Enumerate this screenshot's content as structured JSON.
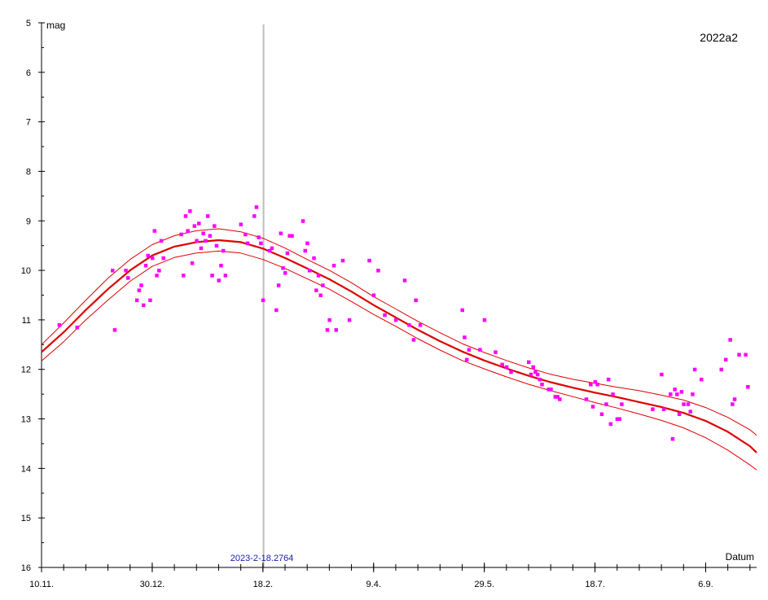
{
  "chart_data": {
    "type": "scatter",
    "title": "2022a2",
    "xlabel": "Datum",
    "ylabel": "mag",
    "ylim": [
      5,
      16
    ],
    "y_inverted": true,
    "y_ticks": [
      5,
      6,
      7,
      8,
      9,
      10,
      11,
      12,
      13,
      14,
      15,
      16
    ],
    "x_unit": "days since 10.11.2022",
    "xlim": [
      0,
      323
    ],
    "x_ticks": [
      {
        "day": 0,
        "label": "10.11."
      },
      {
        "day": 50,
        "label": "30.12."
      },
      {
        "day": 100,
        "label": "18.2."
      },
      {
        "day": 150,
        "label": "9.4."
      },
      {
        "day": 200,
        "label": "29.5."
      },
      {
        "day": 250,
        "label": "18.7."
      },
      {
        "day": 300,
        "label": "6.9."
      }
    ],
    "marker": {
      "day": 100.28,
      "label": "2023-2-18.2764"
    },
    "colors": {
      "points": "#ff00ff",
      "fit": "#dd0000",
      "marker": "#bdbdbd",
      "marker_label": "#1a1aaa",
      "axis": "#000000"
    },
    "series": [
      {
        "name": "observations",
        "points": [
          [
            8,
            11.1
          ],
          [
            16,
            11.15
          ],
          [
            33,
            11.2
          ],
          [
            32,
            10.0
          ],
          [
            38,
            10.0
          ],
          [
            39,
            10.15
          ],
          [
            43,
            10.6
          ],
          [
            44,
            10.4
          ],
          [
            45,
            10.3
          ],
          [
            46,
            10.7
          ],
          [
            47,
            9.9
          ],
          [
            48,
            9.7
          ],
          [
            49,
            10.6
          ],
          [
            50,
            9.75
          ],
          [
            51,
            9.2
          ],
          [
            52,
            10.1
          ],
          [
            53,
            10.0
          ],
          [
            54,
            9.4
          ],
          [
            55,
            9.75
          ],
          [
            63,
            9.27
          ],
          [
            64,
            10.1
          ],
          [
            65,
            8.9
          ],
          [
            66,
            9.2
          ],
          [
            67,
            8.8
          ],
          [
            68,
            9.85
          ],
          [
            69,
            9.1
          ],
          [
            70,
            9.4
          ],
          [
            71,
            9.05
          ],
          [
            72,
            9.55
          ],
          [
            73,
            9.25
          ],
          [
            74,
            9.4
          ],
          [
            75,
            8.9
          ],
          [
            76,
            9.3
          ],
          [
            77,
            10.1
          ],
          [
            78,
            9.1
          ],
          [
            79,
            9.5
          ],
          [
            80,
            10.2
          ],
          [
            81,
            9.9
          ],
          [
            82,
            9.6
          ],
          [
            83,
            10.1
          ],
          [
            90,
            9.07
          ],
          [
            92,
            9.27
          ],
          [
            93,
            9.45
          ],
          [
            96,
            8.9
          ],
          [
            97,
            8.72
          ],
          [
            98,
            9.33
          ],
          [
            99,
            9.45
          ],
          [
            100,
            10.6
          ],
          [
            103,
            9.6
          ],
          [
            104,
            9.55
          ],
          [
            106,
            10.8
          ],
          [
            107,
            10.3
          ],
          [
            108,
            9.25
          ],
          [
            109,
            9.95
          ],
          [
            110,
            10.05
          ],
          [
            111,
            9.65
          ],
          [
            112,
            9.3
          ],
          [
            113,
            9.3
          ],
          [
            118,
            9.0
          ],
          [
            119,
            9.6
          ],
          [
            120,
            9.45
          ],
          [
            121,
            10.0
          ],
          [
            123,
            9.75
          ],
          [
            124,
            10.4
          ],
          [
            125,
            10.1
          ],
          [
            126,
            10.5
          ],
          [
            127,
            10.3
          ],
          [
            129,
            11.2
          ],
          [
            130,
            11.0
          ],
          [
            132,
            9.9
          ],
          [
            133,
            11.2
          ],
          [
            136,
            9.8
          ],
          [
            139,
            11.0
          ],
          [
            148,
            9.8
          ],
          [
            150,
            10.5
          ],
          [
            152,
            10.0
          ],
          [
            155,
            10.9
          ],
          [
            160,
            11.0
          ],
          [
            164,
            10.2
          ],
          [
            166,
            11.1
          ],
          [
            168,
            11.4
          ],
          [
            169,
            10.6
          ],
          [
            171,
            11.1
          ],
          [
            190,
            10.8
          ],
          [
            191,
            11.35
          ],
          [
            192,
            11.8
          ],
          [
            193,
            11.6
          ],
          [
            198,
            11.6
          ],
          [
            200,
            11.0
          ],
          [
            205,
            11.65
          ],
          [
            208,
            11.9
          ],
          [
            210,
            11.95
          ],
          [
            212,
            12.05
          ],
          [
            220,
            11.85
          ],
          [
            221,
            12.1
          ],
          [
            222,
            11.95
          ],
          [
            223,
            12.05
          ],
          [
            224,
            12.1
          ],
          [
            225,
            12.2
          ],
          [
            226,
            12.3
          ],
          [
            229,
            12.4
          ],
          [
            230,
            12.4
          ],
          [
            232,
            12.55
          ],
          [
            233,
            12.55
          ],
          [
            234,
            12.6
          ],
          [
            246,
            12.6
          ],
          [
            248,
            12.3
          ],
          [
            249,
            12.75
          ],
          [
            250,
            12.25
          ],
          [
            251,
            12.3
          ],
          [
            253,
            12.9
          ],
          [
            255,
            12.7
          ],
          [
            256,
            12.2
          ],
          [
            257,
            13.1
          ],
          [
            258,
            12.5
          ],
          [
            260,
            13.0
          ],
          [
            261,
            13.0
          ],
          [
            262,
            12.7
          ],
          [
            276,
            12.8
          ],
          [
            280,
            12.1
          ],
          [
            281,
            12.8
          ],
          [
            284,
            12.5
          ],
          [
            285,
            13.4
          ],
          [
            286,
            12.4
          ],
          [
            287,
            12.5
          ],
          [
            288,
            12.9
          ],
          [
            289,
            12.45
          ],
          [
            290,
            12.7
          ],
          [
            292,
            12.7
          ],
          [
            293,
            12.85
          ],
          [
            294,
            12.5
          ],
          [
            295,
            12.0
          ],
          [
            298,
            12.2
          ],
          [
            307,
            12.0
          ],
          [
            309,
            11.8
          ],
          [
            311,
            11.4
          ],
          [
            312,
            12.7
          ],
          [
            313,
            12.6
          ],
          [
            315,
            11.7
          ],
          [
            318,
            11.7
          ],
          [
            319,
            12.35
          ]
        ]
      },
      {
        "name": "fit",
        "points": [
          [
            0,
            11.65
          ],
          [
            10,
            11.25
          ],
          [
            20,
            10.8
          ],
          [
            30,
            10.38
          ],
          [
            40,
            10.0
          ],
          [
            50,
            9.7
          ],
          [
            60,
            9.52
          ],
          [
            70,
            9.43
          ],
          [
            80,
            9.39
          ],
          [
            90,
            9.43
          ],
          [
            100,
            9.56
          ],
          [
            110,
            9.75
          ],
          [
            120,
            9.96
          ],
          [
            130,
            10.18
          ],
          [
            140,
            10.43
          ],
          [
            150,
            10.7
          ],
          [
            160,
            10.95
          ],
          [
            170,
            11.2
          ],
          [
            180,
            11.43
          ],
          [
            190,
            11.64
          ],
          [
            200,
            11.82
          ],
          [
            210,
            11.98
          ],
          [
            220,
            12.13
          ],
          [
            230,
            12.26
          ],
          [
            240,
            12.37
          ],
          [
            250,
            12.47
          ],
          [
            260,
            12.56
          ],
          [
            270,
            12.66
          ],
          [
            280,
            12.76
          ],
          [
            290,
            12.88
          ],
          [
            300,
            13.04
          ],
          [
            310,
            13.26
          ],
          [
            320,
            13.55
          ],
          [
            323,
            13.68
          ]
        ]
      },
      {
        "name": "fit-upper",
        "points": [
          [
            0,
            11.5
          ],
          [
            10,
            11.06
          ],
          [
            20,
            10.6
          ],
          [
            30,
            10.16
          ],
          [
            40,
            9.78
          ],
          [
            50,
            9.48
          ],
          [
            60,
            9.3
          ],
          [
            70,
            9.2
          ],
          [
            80,
            9.16
          ],
          [
            90,
            9.22
          ],
          [
            100,
            9.35
          ],
          [
            110,
            9.55
          ],
          [
            120,
            9.78
          ],
          [
            130,
            10.0
          ],
          [
            140,
            10.25
          ],
          [
            150,
            10.53
          ],
          [
            160,
            10.78
          ],
          [
            170,
            11.03
          ],
          [
            180,
            11.26
          ],
          [
            190,
            11.48
          ],
          [
            200,
            11.66
          ],
          [
            210,
            11.82
          ],
          [
            220,
            11.97
          ],
          [
            230,
            12.1
          ],
          [
            240,
            12.2
          ],
          [
            250,
            12.28
          ],
          [
            260,
            12.36
          ],
          [
            270,
            12.43
          ],
          [
            280,
            12.52
          ],
          [
            290,
            12.62
          ],
          [
            300,
            12.77
          ],
          [
            310,
            12.97
          ],
          [
            320,
            13.22
          ],
          [
            323,
            13.33
          ]
        ]
      },
      {
        "name": "fit-lower",
        "points": [
          [
            0,
            11.83
          ],
          [
            10,
            11.44
          ],
          [
            20,
            11.0
          ],
          [
            30,
            10.6
          ],
          [
            40,
            10.22
          ],
          [
            50,
            9.92
          ],
          [
            60,
            9.74
          ],
          [
            70,
            9.65
          ],
          [
            80,
            9.61
          ],
          [
            90,
            9.65
          ],
          [
            100,
            9.78
          ],
          [
            110,
            9.96
          ],
          [
            120,
            10.17
          ],
          [
            130,
            10.38
          ],
          [
            140,
            10.63
          ],
          [
            150,
            10.89
          ],
          [
            160,
            11.13
          ],
          [
            170,
            11.38
          ],
          [
            180,
            11.61
          ],
          [
            190,
            11.82
          ],
          [
            200,
            11.99
          ],
          [
            210,
            12.15
          ],
          [
            220,
            12.3
          ],
          [
            230,
            12.43
          ],
          [
            240,
            12.55
          ],
          [
            250,
            12.67
          ],
          [
            260,
            12.78
          ],
          [
            270,
            12.9
          ],
          [
            280,
            13.03
          ],
          [
            290,
            13.18
          ],
          [
            300,
            13.38
          ],
          [
            310,
            13.63
          ],
          [
            320,
            13.93
          ],
          [
            323,
            14.03
          ]
        ]
      }
    ]
  }
}
